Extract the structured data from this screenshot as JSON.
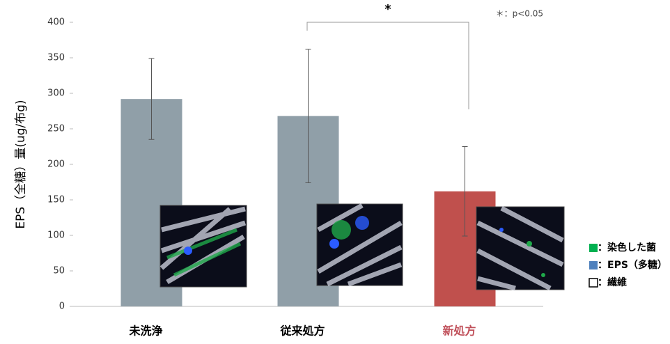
{
  "chart_data": {
    "type": "bar",
    "y_label": "EPS（全糖）量(ug/布g)",
    "categories": [
      "未洗浄",
      "従来処方",
      "新処方"
    ],
    "category_label_colors": [
      "#000000",
      "#000000",
      "#c0505a"
    ],
    "values": [
      292,
      268,
      162
    ],
    "errors": [
      57,
      94,
      63
    ],
    "colors": [
      "#909fa8",
      "#909fa8",
      "#c0504d"
    ],
    "ylim": [
      0,
      400
    ],
    "yticks": [
      0,
      50,
      100,
      150,
      200,
      250,
      300,
      350,
      400
    ],
    "grid": false,
    "significance_mark": "*",
    "significance_note": "＊：p<0.05",
    "legend": [
      {
        "label": "：染色した菌",
        "color": "#00b050"
      },
      {
        "label": "：EPS（多糖）",
        "color": "#4f81bd"
      },
      {
        "label": "：繊維",
        "color": "#ffffff"
      }
    ]
  }
}
